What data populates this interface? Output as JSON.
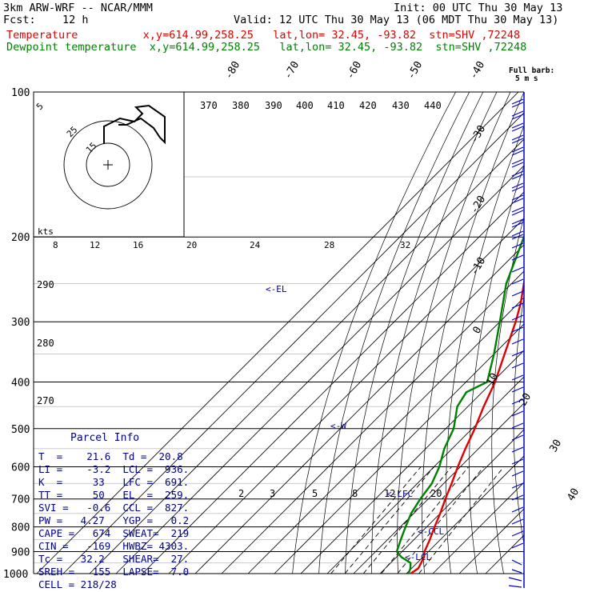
{
  "header": {
    "model": "3km ARW-WRF -- NCAR/MMM",
    "init": "Init: 00 UTC Thu 30 May 13",
    "fcst_label": "Fcst:",
    "fcst_value": "12 h",
    "valid": "Valid: 12 UTC Thu 30 May 13 (06 MDT Thu 30 May 13)",
    "temp_line": "Temperature          x,y=614.99,258.25   lat,lon= 32.45, -93.82  stn=SHV ,72248",
    "dew_line": "Dewpoint temperature  x,y=614.99,258.25   lat,lon= 32.45, -93.82  stn=SHV ,72248"
  },
  "wind_key": {
    "line1": "Full barb:",
    "line2": "5 m s"
  },
  "parcel_info": {
    "title": "Parcel Info",
    "rows": [
      "T  =    21.6  Td =  20.8",
      "LI =    -3.2  LCL =  936.",
      "K  =     33   LFC =  691.",
      "TT =     50   EL  =  259.",
      "SVI =   -0.6  CCL =  827.",
      "PW =   4.27   YGP =   0.2",
      "CAPE =   674  SWEAT=  219",
      "CIN =   -169  HWBZ= 4303.",
      "Tc =   32.2   SHEAR=  27.",
      "SREH =   155  LAPSE=  7.0",
      "CELL = 218/28"
    ]
  },
  "colors": {
    "temperature": "#e00000",
    "dewpoint": "#008000",
    "annot": "#00008b",
    "barb": "#0000cd"
  },
  "chart_data": {
    "type": "line",
    "subtype": "skew-T log-P sounding",
    "y_axis": {
      "label": "Pressure (hPa)",
      "scale": "log",
      "ticks": [
        100,
        200,
        300,
        400,
        500,
        600,
        700,
        800,
        900,
        1000
      ]
    },
    "isotherm_labels": [
      "-80",
      "-70",
      "-60",
      "-50",
      "-40",
      "-30",
      "-20",
      "-10",
      "0",
      "10",
      "20",
      "30",
      "40"
    ],
    "theta_labels": [
      "370",
      "380",
      "390",
      "400",
      "410",
      "420",
      "430",
      "440"
    ],
    "left_theta_labels": [
      "290",
      "280",
      "270"
    ],
    "mixing_ratio_labels": [
      "2",
      "3",
      "5",
      "8",
      "12",
      "20"
    ],
    "hodograph": {
      "speed_labels": [
        "8",
        "12",
        "16",
        "20",
        "24",
        "28",
        "32"
      ],
      "ring_labels": [
        "5",
        "25",
        "15"
      ],
      "units": "kts"
    },
    "annotations": [
      {
        "label": "<-EL",
        "p": 259
      },
      {
        "label": "<-LFC",
        "p": 691
      },
      {
        "label": "<-CCL",
        "p": 827
      },
      {
        "label": "<-LCL",
        "p": 936
      },
      {
        "label": "<-W",
        "p": 500
      }
    ],
    "series": [
      {
        "name": "Temperature",
        "points": [
          [
            1000,
            21.6
          ],
          [
            975,
            22.5
          ],
          [
            950,
            21.5
          ],
          [
            925,
            20.5
          ],
          [
            900,
            18.5
          ],
          [
            850,
            16
          ],
          [
            800,
            13
          ],
          [
            750,
            10
          ],
          [
            700,
            6.5
          ],
          [
            650,
            3
          ],
          [
            600,
            -1
          ],
          [
            550,
            -5
          ],
          [
            500,
            -9
          ],
          [
            450,
            -14
          ],
          [
            400,
            -19
          ],
          [
            350,
            -26
          ],
          [
            300,
            -34
          ],
          [
            275,
            -39
          ],
          [
            259,
            -43
          ],
          [
            240,
            -48
          ],
          [
            220,
            -52
          ],
          [
            200,
            -55
          ],
          [
            180,
            -58
          ],
          [
            160,
            -60
          ],
          [
            150,
            -60
          ],
          [
            140,
            -59
          ],
          [
            120,
            -57
          ],
          [
            100,
            -55
          ]
        ]
      },
      {
        "name": "Dewpoint temperature",
        "points": [
          [
            1000,
            20.8
          ],
          [
            975,
            19.5
          ],
          [
            950,
            17.5
          ],
          [
            925,
            12
          ],
          [
            900,
            8
          ],
          [
            850,
            5
          ],
          [
            800,
            2
          ],
          [
            750,
            -1
          ],
          [
            700,
            -3
          ],
          [
            650,
            -4.5
          ],
          [
            600,
            -8
          ],
          [
            550,
            -13
          ],
          [
            500,
            -17
          ],
          [
            450,
            -24
          ],
          [
            420,
            -26
          ],
          [
            400,
            -22
          ],
          [
            350,
            -30
          ],
          [
            300,
            -40
          ],
          [
            250,
            -52
          ],
          [
            200,
            -63
          ],
          [
            180,
            -65
          ],
          [
            150,
            -67
          ],
          [
            130,
            -67
          ],
          [
            115,
            -62
          ],
          [
            100,
            -58
          ]
        ]
      }
    ]
  }
}
